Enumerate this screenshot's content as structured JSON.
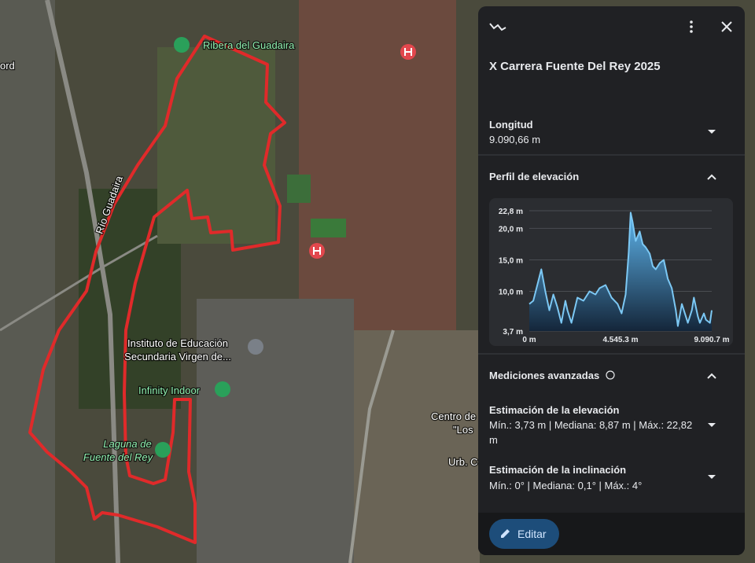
{
  "map": {
    "labels": [
      "ord",
      "Ribera del Guadaira",
      "Río Guadaira",
      "Instituto de Educación",
      "Secundaria Virgen de...",
      "Infinity Indoor",
      "Laguna de",
      "Fuente del Rey",
      "Centro de",
      "\"Los",
      "Urb. C"
    ]
  },
  "panel": {
    "title": "X Carrera Fuente Del Rey 2025",
    "length": {
      "label": "Longitud",
      "value": "9.090,66 m"
    },
    "profile": {
      "label": "Perfil de elevación"
    },
    "advanced": {
      "label": "Mediciones avanzadas",
      "elevation": {
        "label": "Estimación de la elevación",
        "text": "Mín.: 3,73 m | Mediana: 8,87 m | Máx.: 22,82 m"
      },
      "slope": {
        "label": "Estimación de la inclinación",
        "text": "Mín.: 0° | Mediana: 0,1° | Máx.: 4°"
      }
    },
    "edit": "Editar"
  },
  "chart_data": {
    "type": "area",
    "color": "#7cc8f4",
    "x": [
      0,
      200,
      400,
      600,
      800,
      1000,
      1200,
      1400,
      1600,
      1800,
      1900,
      2100,
      2400,
      2700,
      3000,
      3300,
      3500,
      3800,
      4100,
      4400,
      4600,
      4800,
      4950,
      5050,
      5150,
      5300,
      5500,
      5650,
      5800,
      6000,
      6150,
      6300,
      6500,
      6700,
      6900,
      7100,
      7300,
      7400,
      7600,
      7800,
      7900,
      8100,
      8200,
      8400,
      8500,
      8700,
      8800,
      9000,
      9090.7
    ],
    "values": [
      8,
      8.5,
      11,
      13.5,
      10,
      7,
      9.5,
      7.5,
      5,
      8.5,
      7,
      5,
      9,
      8.5,
      10,
      9.5,
      10.5,
      11,
      9,
      8,
      6.5,
      9.5,
      16,
      22.5,
      21,
      18,
      19.5,
      17.5,
      17,
      16,
      14,
      13.5,
      14.5,
      15,
      12,
      10.5,
      7,
      4.5,
      8,
      6,
      5,
      7,
      9,
      6,
      5,
      6.5,
      5.5,
      5,
      7
    ],
    "xlim": [
      0,
      9090.7
    ],
    "ylim": [
      3.7,
      22.8
    ],
    "xticks": [
      {
        "value": 0,
        "label": "0 m"
      },
      {
        "value": 4545.3,
        "label": "4.545.3 m"
      },
      {
        "value": 9090.7,
        "label": "9.090.7 m"
      }
    ],
    "yticks": [
      {
        "value": 22.8,
        "label": "22,8 m"
      },
      {
        "value": 20,
        "label": "20,0 m"
      },
      {
        "value": 15,
        "label": "15,0 m"
      },
      {
        "value": 10,
        "label": "10,0 m"
      },
      {
        "value": 3.7,
        "label": "3,7 m"
      }
    ],
    "grid": true
  }
}
